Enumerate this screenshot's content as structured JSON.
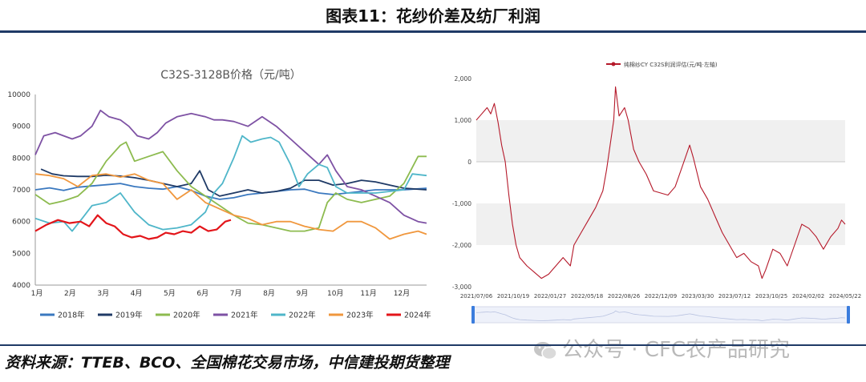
{
  "header": {
    "title": "图表11：花纱价差及纺厂利润"
  },
  "footer": {
    "source": "资料来源：TTEB、BCO、全国棉花交易市场，中信建投期货整理",
    "watermark": "公众号 · CFC农产品研究"
  },
  "chart_data": [
    {
      "type": "line",
      "title": "C32S-3128B价格（元/吨）",
      "categories": [
        "1月",
        "2月",
        "3月",
        "4月",
        "5月",
        "6月",
        "7月",
        "8月",
        "9月",
        "10月",
        "11月",
        "12月"
      ],
      "ylim": [
        4000,
        10000
      ],
      "yticks": [
        4000,
        5000,
        6000,
        7000,
        8000,
        9000,
        10000
      ],
      "grid": false,
      "legend": "bottom",
      "series": [
        {
          "name": "2018年",
          "color": "#3a78bf",
          "values": [
            [
              0,
              7000
            ],
            [
              0.5,
              7060
            ],
            [
              1,
              6980
            ],
            [
              1.5,
              7080
            ],
            [
              2,
              7120
            ],
            [
              2.5,
              7160
            ],
            [
              3,
              7200
            ],
            [
              3.5,
              7100
            ],
            [
              4,
              7050
            ],
            [
              4.5,
              7020
            ],
            [
              5,
              7100
            ],
            [
              5.5,
              6980
            ],
            [
              6,
              6800
            ],
            [
              6.5,
              6700
            ],
            [
              7,
              6750
            ],
            [
              7.5,
              6850
            ],
            [
              8,
              6900
            ],
            [
              8.5,
              6950
            ],
            [
              9,
              7000
            ],
            [
              9.5,
              7020
            ],
            [
              10,
              6900
            ],
            [
              10.5,
              6850
            ],
            [
              11,
              6900
            ],
            [
              11.5,
              6950
            ],
            [
              12,
              7000
            ],
            [
              12.5,
              7000
            ],
            [
              13,
              7000
            ],
            [
              13.8,
              7050
            ]
          ]
        },
        {
          "name": "2019年",
          "color": "#1f3a66",
          "values": [
            [
              0.2,
              7650
            ],
            [
              0.6,
              7500
            ],
            [
              1,
              7440
            ],
            [
              1.5,
              7420
            ],
            [
              2,
              7420
            ],
            [
              2.5,
              7460
            ],
            [
              3,
              7430
            ],
            [
              3.5,
              7380
            ],
            [
              4,
              7300
            ],
            [
              4.5,
              7200
            ],
            [
              5,
              7100
            ],
            [
              5.5,
              7200
            ],
            [
              5.8,
              7600
            ],
            [
              6.1,
              7000
            ],
            [
              6.5,
              6800
            ],
            [
              7,
              6900
            ],
            [
              7.5,
              7000
            ],
            [
              8,
              6900
            ],
            [
              8.5,
              6950
            ],
            [
              9,
              7050
            ],
            [
              9.5,
              7300
            ],
            [
              10,
              7300
            ],
            [
              10.5,
              7150
            ],
            [
              11,
              7200
            ],
            [
              11.5,
              7300
            ],
            [
              12,
              7250
            ],
            [
              12.5,
              7150
            ],
            [
              13,
              7050
            ],
            [
              13.8,
              7000
            ]
          ]
        },
        {
          "name": "2020年",
          "color": "#8dbb4f",
          "values": [
            [
              0,
              6850
            ],
            [
              0.5,
              6550
            ],
            [
              1,
              6650
            ],
            [
              1.5,
              6800
            ],
            [
              2,
              7200
            ],
            [
              2.5,
              7900
            ],
            [
              3,
              8400
            ],
            [
              3.2,
              8500
            ],
            [
              3.5,
              7900
            ],
            [
              4,
              8050
            ],
            [
              4.5,
              8200
            ],
            [
              5,
              7600
            ],
            [
              5.5,
              7100
            ],
            [
              6,
              6800
            ],
            [
              6.5,
              6500
            ],
            [
              7,
              6200
            ],
            [
              7.5,
              5950
            ],
            [
              8,
              5900
            ],
            [
              8.5,
              5800
            ],
            [
              9,
              5700
            ],
            [
              9.5,
              5700
            ],
            [
              10,
              5800
            ],
            [
              10.3,
              6600
            ],
            [
              10.6,
              6900
            ],
            [
              11,
              6700
            ],
            [
              11.5,
              6600
            ],
            [
              12,
              6700
            ],
            [
              12.5,
              6800
            ],
            [
              13,
              7200
            ],
            [
              13.5,
              8050
            ],
            [
              13.8,
              8050
            ]
          ]
        },
        {
          "name": "2021年",
          "color": "#7e52a4",
          "values": [
            [
              0,
              8100
            ],
            [
              0.3,
              8700
            ],
            [
              0.7,
              8800
            ],
            [
              1,
              8700
            ],
            [
              1.3,
              8600
            ],
            [
              1.6,
              8700
            ],
            [
              2,
              9000
            ],
            [
              2.3,
              9500
            ],
            [
              2.6,
              9300
            ],
            [
              3,
              9200
            ],
            [
              3.3,
              9000
            ],
            [
              3.6,
              8700
            ],
            [
              4,
              8600
            ],
            [
              4.3,
              8800
            ],
            [
              4.6,
              9100
            ],
            [
              5,
              9300
            ],
            [
              5.5,
              9400
            ],
            [
              6,
              9300
            ],
            [
              6.3,
              9200
            ],
            [
              6.6,
              9200
            ],
            [
              7,
              9150
            ],
            [
              7.5,
              9000
            ],
            [
              8,
              9300
            ],
            [
              8.5,
              9000
            ],
            [
              9,
              8600
            ],
            [
              9.5,
              8200
            ],
            [
              10,
              7800
            ],
            [
              10.3,
              8100
            ],
            [
              10.6,
              7600
            ],
            [
              11,
              7100
            ],
            [
              11.5,
              7000
            ],
            [
              12,
              6800
            ],
            [
              12.5,
              6600
            ],
            [
              13,
              6200
            ],
            [
              13.5,
              6000
            ],
            [
              13.8,
              5950
            ]
          ]
        },
        {
          "name": "2022年",
          "color": "#4fb6c9",
          "values": [
            [
              0,
              6100
            ],
            [
              0.5,
              5950
            ],
            [
              1,
              6000
            ],
            [
              1.3,
              5700
            ],
            [
              1.7,
              6150
            ],
            [
              2,
              6500
            ],
            [
              2.5,
              6600
            ],
            [
              3,
              6900
            ],
            [
              3.5,
              6300
            ],
            [
              4,
              5900
            ],
            [
              4.5,
              5750
            ],
            [
              5,
              5800
            ],
            [
              5.5,
              5900
            ],
            [
              6,
              6300
            ],
            [
              6.3,
              6900
            ],
            [
              6.6,
              7200
            ],
            [
              7,
              8000
            ],
            [
              7.3,
              8700
            ],
            [
              7.6,
              8500
            ],
            [
              8,
              8600
            ],
            [
              8.3,
              8650
            ],
            [
              8.6,
              8500
            ],
            [
              9,
              7800
            ],
            [
              9.3,
              7100
            ],
            [
              9.6,
              7500
            ],
            [
              10,
              7800
            ],
            [
              10.3,
              7700
            ],
            [
              10.6,
              7100
            ],
            [
              11,
              6900
            ],
            [
              11.5,
              6900
            ],
            [
              12,
              6900
            ],
            [
              12.5,
              6950
            ],
            [
              13,
              7000
            ],
            [
              13.3,
              7500
            ],
            [
              13.8,
              7450
            ]
          ]
        },
        {
          "name": "2023年",
          "color": "#f0973d",
          "values": [
            [
              0,
              7500
            ],
            [
              0.5,
              7450
            ],
            [
              1,
              7350
            ],
            [
              1.5,
              7100
            ],
            [
              2,
              7450
            ],
            [
              2.5,
              7500
            ],
            [
              3,
              7400
            ],
            [
              3.5,
              7500
            ],
            [
              4,
              7300
            ],
            [
              4.5,
              7200
            ],
            [
              5,
              6700
            ],
            [
              5.5,
              7000
            ],
            [
              6,
              6600
            ],
            [
              6.5,
              6400
            ],
            [
              7,
              6200
            ],
            [
              7.5,
              6100
            ],
            [
              8,
              5900
            ],
            [
              8.5,
              6000
            ],
            [
              9,
              6000
            ],
            [
              9.5,
              5850
            ],
            [
              10,
              5750
            ],
            [
              10.5,
              5700
            ],
            [
              11,
              6000
            ],
            [
              11.5,
              6000
            ],
            [
              12,
              5800
            ],
            [
              12.5,
              5450
            ],
            [
              13,
              5600
            ],
            [
              13.5,
              5700
            ],
            [
              13.8,
              5600
            ]
          ]
        },
        {
          "name": "2024年",
          "color": "#e3151a",
          "values": [
            [
              0,
              5700
            ],
            [
              0.4,
              5900
            ],
            [
              0.8,
              6050
            ],
            [
              1.2,
              5950
            ],
            [
              1.6,
              6000
            ],
            [
              1.9,
              5850
            ],
            [
              2.2,
              6200
            ],
            [
              2.5,
              5950
            ],
            [
              2.8,
              5850
            ],
            [
              3.1,
              5600
            ],
            [
              3.4,
              5500
            ],
            [
              3.7,
              5550
            ],
            [
              4,
              5450
            ],
            [
              4.3,
              5500
            ],
            [
              4.6,
              5650
            ],
            [
              4.9,
              5600
            ],
            [
              5.2,
              5700
            ],
            [
              5.5,
              5650
            ],
            [
              5.8,
              5850
            ],
            [
              6.1,
              5700
            ],
            [
              6.4,
              5750
            ],
            [
              6.7,
              6000
            ],
            [
              6.9,
              6050
            ]
          ]
        }
      ]
    },
    {
      "type": "line",
      "title": "纯棉纱CY C32S利润评估(元/吨·左轴)",
      "legend": "top",
      "color": "#b5192a",
      "ylim": [
        -3000,
        2000
      ],
      "yticks": [
        2000,
        1000,
        0,
        -1000,
        -2000,
        -3000
      ],
      "ytick_labels": [
        "2,000",
        "1,000",
        "0",
        "-1,000",
        "-2,000",
        "-3,000"
      ],
      "xticks": [
        "2021/07/06",
        "2021/10/19",
        "2022/01/27",
        "2022/05/18",
        "2022/08/26",
        "2022/12/09",
        "2023/03/30",
        "2023/07/12",
        "2023/10/25",
        "2024/02/02",
        "2024/05/22"
      ],
      "grid": "banded",
      "values": [
        [
          0,
          1000
        ],
        [
          0.1,
          1100
        ],
        [
          0.2,
          1200
        ],
        [
          0.3,
          1300
        ],
        [
          0.4,
          1150
        ],
        [
          0.5,
          1400
        ],
        [
          0.6,
          950
        ],
        [
          0.7,
          400
        ],
        [
          0.8,
          0
        ],
        [
          0.9,
          -800
        ],
        [
          1.0,
          -1500
        ],
        [
          1.1,
          -2000
        ],
        [
          1.2,
          -2300
        ],
        [
          1.4,
          -2500
        ],
        [
          1.6,
          -2650
        ],
        [
          1.8,
          -2800
        ],
        [
          2.0,
          -2700
        ],
        [
          2.2,
          -2500
        ],
        [
          2.4,
          -2300
        ],
        [
          2.6,
          -2500
        ],
        [
          2.7,
          -2000
        ],
        [
          2.9,
          -1700
        ],
        [
          3.1,
          -1400
        ],
        [
          3.3,
          -1100
        ],
        [
          3.5,
          -700
        ],
        [
          3.6,
          -200
        ],
        [
          3.7,
          400
        ],
        [
          3.8,
          1000
        ],
        [
          3.85,
          1800
        ],
        [
          3.95,
          1100
        ],
        [
          4.1,
          1300
        ],
        [
          4.2,
          1000
        ],
        [
          4.35,
          300
        ],
        [
          4.5,
          0
        ],
        [
          4.7,
          -300
        ],
        [
          4.9,
          -700
        ],
        [
          5.1,
          -750
        ],
        [
          5.3,
          -800
        ],
        [
          5.5,
          -600
        ],
        [
          5.7,
          -100
        ],
        [
          5.9,
          400
        ],
        [
          6.0,
          100
        ],
        [
          6.2,
          -600
        ],
        [
          6.4,
          -900
        ],
        [
          6.6,
          -1300
        ],
        [
          6.8,
          -1700
        ],
        [
          7.0,
          -2000
        ],
        [
          7.2,
          -2300
        ],
        [
          7.4,
          -2200
        ],
        [
          7.6,
          -2400
        ],
        [
          7.8,
          -2500
        ],
        [
          7.9,
          -2800
        ],
        [
          8.0,
          -2600
        ],
        [
          8.2,
          -2100
        ],
        [
          8.4,
          -2200
        ],
        [
          8.6,
          -2500
        ],
        [
          8.8,
          -2000
        ],
        [
          9.0,
          -1500
        ],
        [
          9.2,
          -1600
        ],
        [
          9.4,
          -1800
        ],
        [
          9.6,
          -2100
        ],
        [
          9.8,
          -1800
        ],
        [
          10.0,
          -1600
        ],
        [
          10.1,
          -1400
        ],
        [
          10.2,
          -1500
        ]
      ]
    }
  ]
}
